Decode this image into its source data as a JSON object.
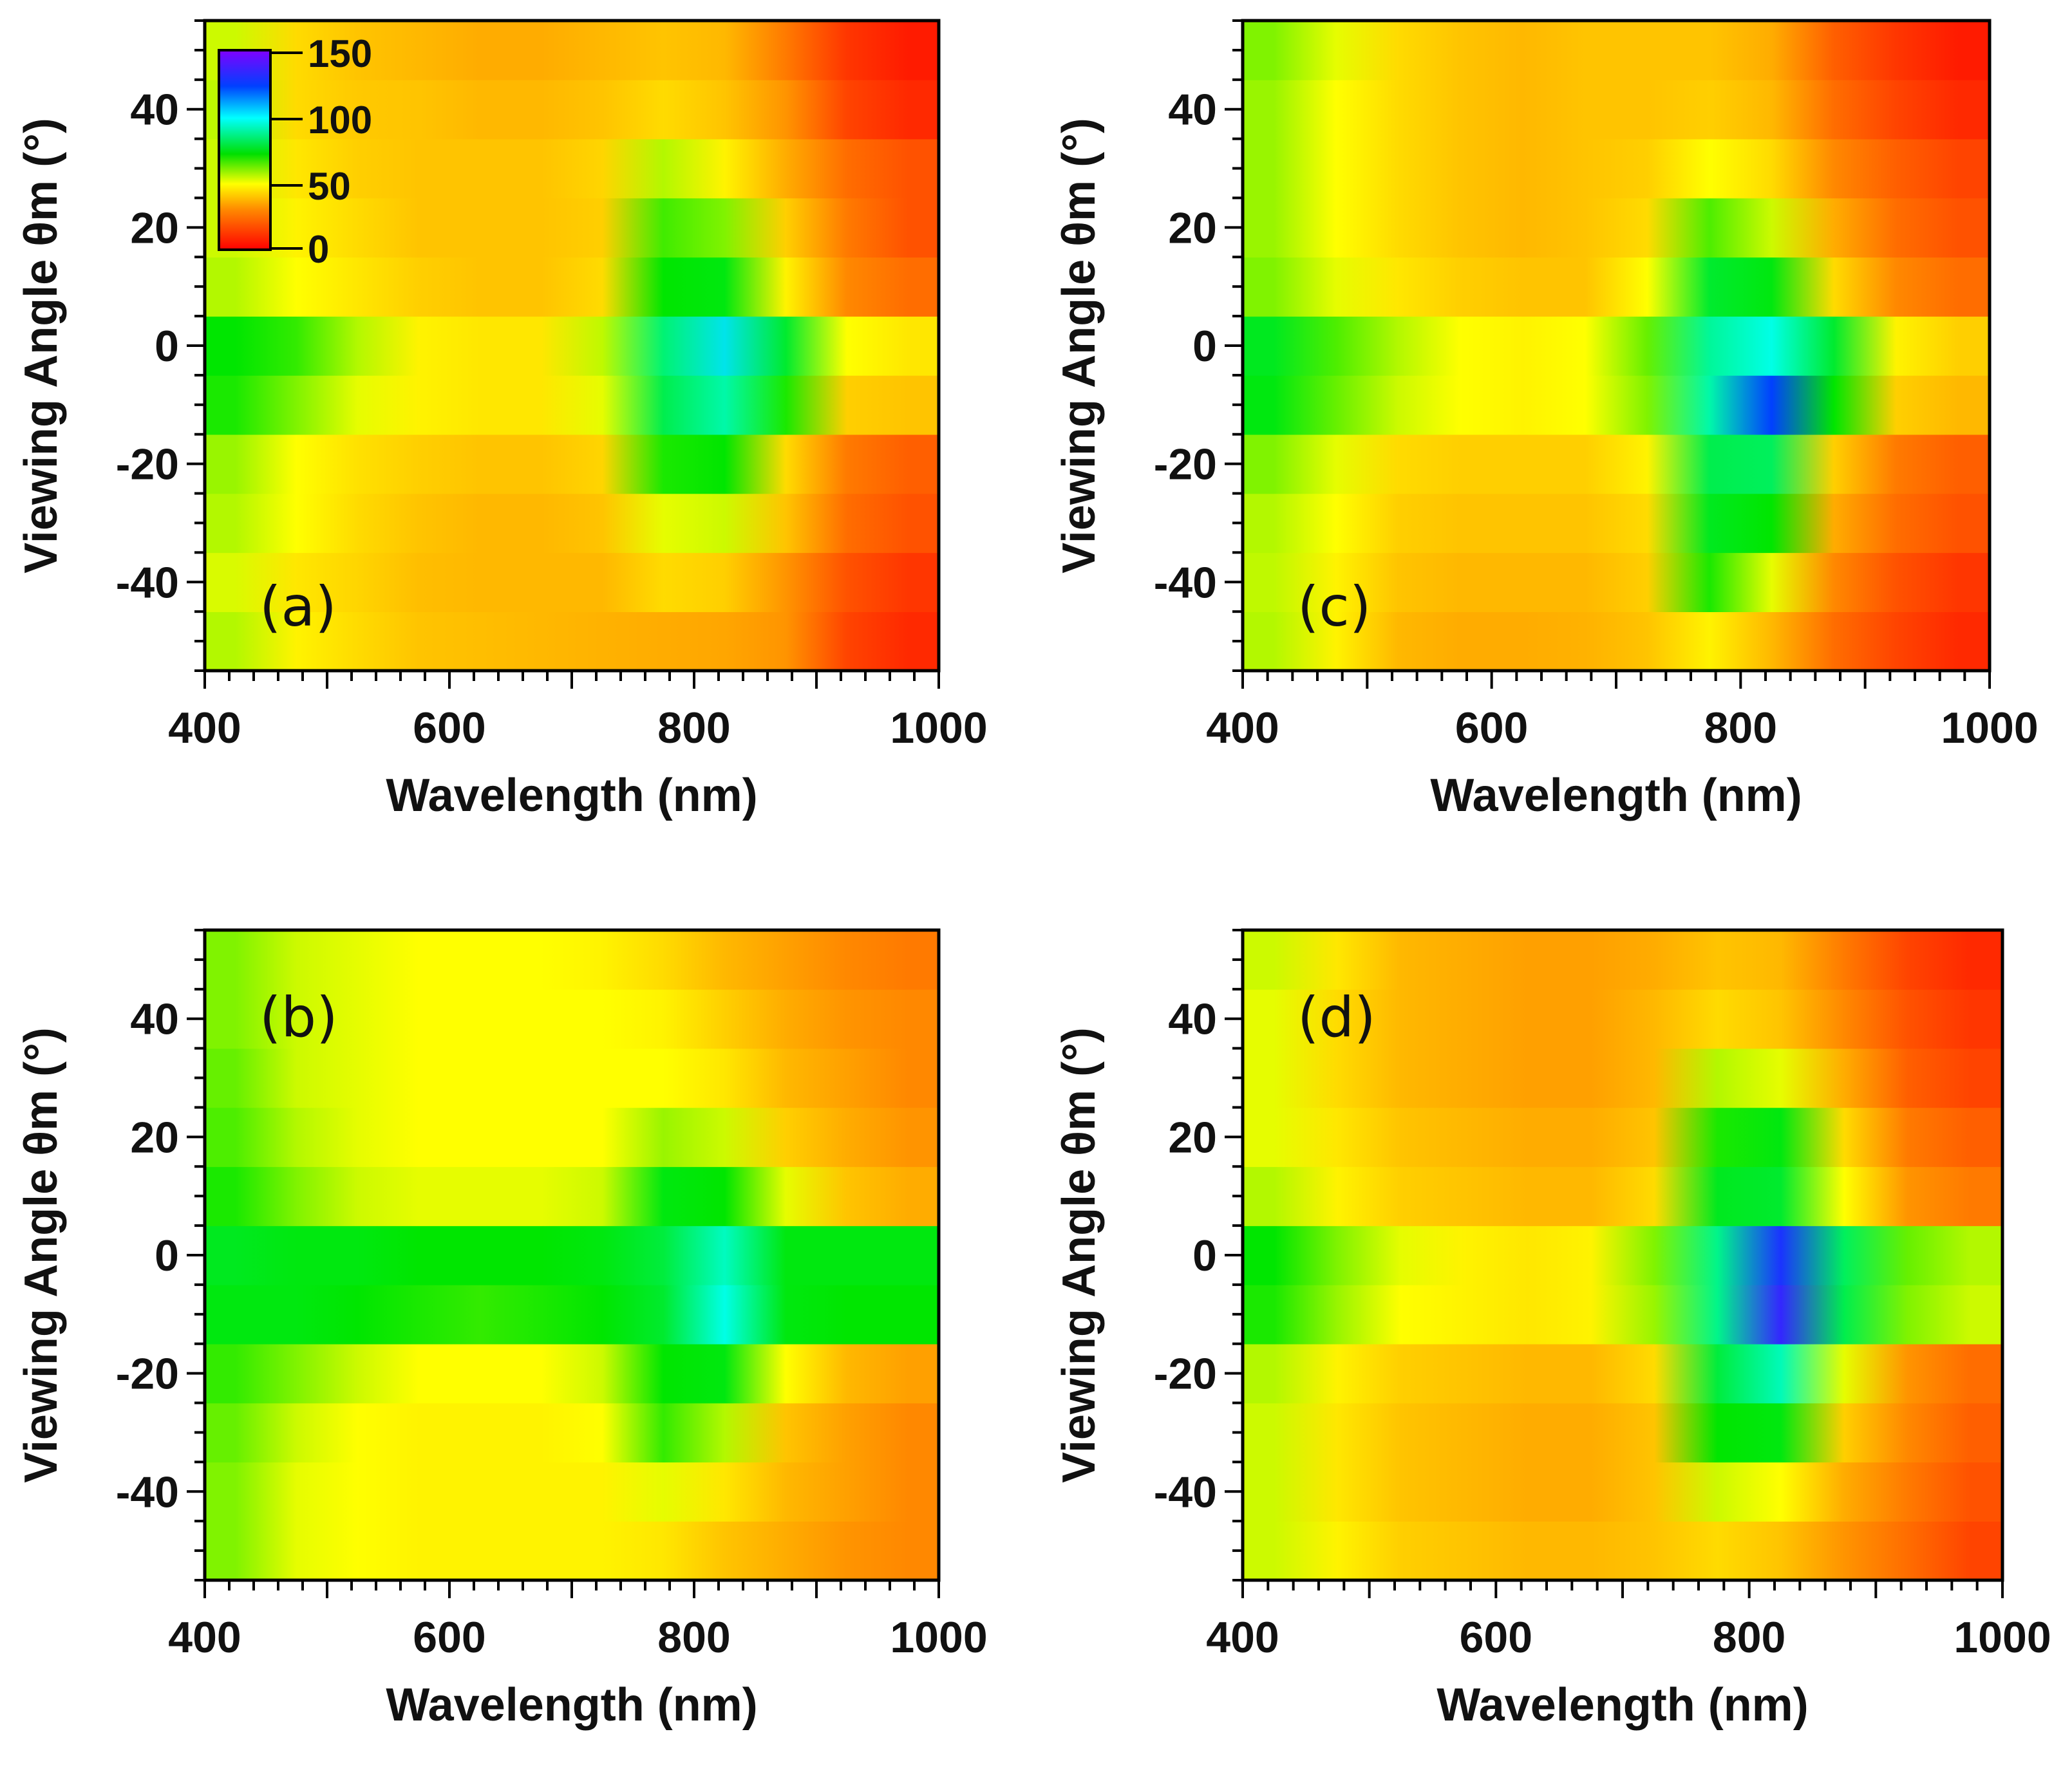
{
  "chart_data": [
    {
      "type": "heatmap",
      "panel": "(a)",
      "xlabel": "Wavelength (nm)",
      "ylabel": "Viewing Angle θm (°)",
      "xlim": [
        400,
        1000
      ],
      "ylim": [
        -55,
        55
      ],
      "x_ticks": [
        400,
        600,
        800,
        1000
      ],
      "y_ticks": [
        -40,
        -20,
        0,
        20,
        40
      ],
      "x_centers": [
        425,
        475,
        525,
        575,
        625,
        675,
        725,
        775,
        825,
        875,
        925,
        975
      ],
      "y_rows": [
        -50,
        -40,
        -30,
        -20,
        -10,
        0,
        10,
        20,
        30,
        40,
        50
      ],
      "values": [
        [
          46,
          38,
          34,
          30,
          29,
          28,
          27,
          26,
          25,
          22,
          10,
          6
        ],
        [
          43,
          36,
          33,
          29,
          28,
          28,
          28,
          34,
          32,
          22,
          12,
          8
        ],
        [
          46,
          40,
          34,
          30,
          28,
          28,
          30,
          42,
          44,
          30,
          16,
          12
        ],
        [
          48,
          40,
          35,
          32,
          30,
          30,
          33,
          58,
          60,
          34,
          18,
          14
        ],
        [
          58,
          50,
          42,
          38,
          36,
          36,
          42,
          70,
          82,
          58,
          32,
          30
        ],
        [
          60,
          56,
          46,
          38,
          36,
          36,
          45,
          75,
          95,
          66,
          40,
          36
        ],
        [
          46,
          40,
          36,
          32,
          30,
          30,
          34,
          60,
          62,
          38,
          20,
          16
        ],
        [
          44,
          38,
          34,
          30,
          30,
          30,
          32,
          55,
          50,
          32,
          18,
          12
        ],
        [
          44,
          36,
          32,
          30,
          30,
          30,
          33,
          46,
          38,
          26,
          16,
          12
        ],
        [
          45,
          34,
          31,
          30,
          28,
          28,
          30,
          34,
          30,
          22,
          10,
          6
        ],
        [
          44,
          34,
          30,
          28,
          26,
          26,
          28,
          30,
          28,
          18,
          8,
          4
        ]
      ]
    },
    {
      "type": "heatmap",
      "panel": "(b)",
      "xlabel": "Wavelength (nm)",
      "ylabel": "Viewing Angle θm (°)",
      "xlim": [
        400,
        1000
      ],
      "ylim": [
        -55,
        55
      ],
      "x_ticks": [
        400,
        600,
        800,
        1000
      ],
      "y_ticks": [
        -40,
        -20,
        0,
        20,
        40
      ],
      "x_centers": [
        425,
        475,
        525,
        575,
        625,
        675,
        725,
        775,
        825,
        875,
        925,
        975
      ],
      "y_rows": [
        -50,
        -40,
        -30,
        -20,
        -10,
        0,
        10,
        20,
        30,
        40,
        50
      ],
      "values": [
        [
          50,
          42,
          40,
          38,
          38,
          38,
          38,
          36,
          30,
          26,
          22,
          20
        ],
        [
          50,
          42,
          40,
          38,
          38,
          38,
          38,
          42,
          36,
          28,
          24,
          20
        ],
        [
          52,
          44,
          40,
          38,
          38,
          38,
          40,
          56,
          46,
          30,
          24,
          20
        ],
        [
          56,
          50,
          44,
          40,
          40,
          40,
          44,
          60,
          62,
          40,
          28,
          24
        ],
        [
          62,
          62,
          60,
          58,
          56,
          58,
          60,
          66,
          90,
          62,
          60,
          60
        ],
        [
          64,
          62,
          62,
          60,
          60,
          60,
          62,
          68,
          85,
          62,
          62,
          62
        ],
        [
          58,
          50,
          44,
          42,
          42,
          42,
          44,
          62,
          60,
          42,
          30,
          26
        ],
        [
          54,
          46,
          42,
          40,
          40,
          40,
          40,
          48,
          44,
          32,
          26,
          22
        ],
        [
          52,
          44,
          42,
          40,
          40,
          40,
          40,
          40,
          36,
          28,
          24,
          20
        ],
        [
          50,
          44,
          42,
          40,
          40,
          40,
          40,
          38,
          32,
          26,
          22,
          20
        ],
        [
          50,
          44,
          42,
          40,
          40,
          40,
          38,
          34,
          28,
          24,
          20,
          18
        ]
      ]
    },
    {
      "type": "heatmap",
      "panel": "(c)",
      "xlabel": "Wavelength (nm)",
      "ylabel": "Viewing Angle θm (°)",
      "xlim": [
        400,
        1000
      ],
      "ylim": [
        -55,
        55
      ],
      "x_ticks": [
        400,
        600,
        800,
        1000
      ],
      "y_ticks": [
        -40,
        -20,
        0,
        20,
        40
      ],
      "x_centers": [
        425,
        475,
        525,
        575,
        625,
        675,
        725,
        775,
        825,
        875,
        925,
        975
      ],
      "y_rows": [
        -50,
        -40,
        -30,
        -20,
        -10,
        0,
        10,
        20,
        30,
        40,
        50
      ],
      "values": [
        [
          46,
          38,
          28,
          26,
          26,
          27,
          30,
          38,
          28,
          16,
          10,
          6
        ],
        [
          45,
          38,
          30,
          28,
          28,
          28,
          32,
          58,
          42,
          20,
          12,
          8
        ],
        [
          46,
          40,
          32,
          30,
          30,
          30,
          34,
          64,
          60,
          26,
          16,
          12
        ],
        [
          50,
          42,
          34,
          32,
          32,
          32,
          38,
          70,
          72,
          32,
          18,
          14
        ],
        [
          62,
          52,
          44,
          40,
          38,
          40,
          50,
          82,
          125,
          60,
          32,
          28
        ],
        [
          64,
          54,
          46,
          40,
          38,
          40,
          52,
          80,
          90,
          66,
          38,
          32
        ],
        [
          50,
          42,
          36,
          32,
          30,
          30,
          40,
          66,
          62,
          34,
          20,
          16
        ],
        [
          48,
          40,
          34,
          30,
          28,
          30,
          34,
          54,
          44,
          26,
          16,
          12
        ],
        [
          48,
          40,
          34,
          30,
          28,
          30,
          32,
          40,
          34,
          20,
          14,
          10
        ],
        [
          48,
          40,
          34,
          30,
          28,
          30,
          30,
          32,
          28,
          16,
          10,
          6
        ],
        [
          50,
          42,
          34,
          30,
          28,
          30,
          30,
          30,
          26,
          14,
          8,
          4
        ]
      ]
    },
    {
      "type": "heatmap",
      "panel": "(d)",
      "xlabel": "Wavelength (nm)",
      "ylabel": "Viewing Angle θm (°)",
      "xlim": [
        400,
        1000
      ],
      "ylim": [
        -55,
        55
      ],
      "x_ticks": [
        400,
        600,
        800,
        1000
      ],
      "y_ticks": [
        -40,
        -20,
        0,
        20,
        40
      ],
      "x_centers": [
        425,
        475,
        525,
        575,
        625,
        675,
        725,
        775,
        825,
        875,
        925,
        975
      ],
      "y_rows": [
        -50,
        -40,
        -30,
        -20,
        -10,
        0,
        10,
        20,
        30,
        40,
        50
      ],
      "values": [
        [
          44,
          38,
          32,
          30,
          28,
          28,
          30,
          34,
          30,
          22,
          16,
          10
        ],
        [
          44,
          36,
          30,
          28,
          26,
          26,
          30,
          44,
          40,
          26,
          18,
          12
        ],
        [
          44,
          36,
          30,
          28,
          26,
          26,
          30,
          60,
          62,
          32,
          20,
          14
        ],
        [
          46,
          38,
          32,
          30,
          28,
          28,
          34,
          68,
          84,
          42,
          22,
          16
        ],
        [
          58,
          48,
          40,
          38,
          36,
          38,
          48,
          78,
          135,
          70,
          50,
          44
        ],
        [
          60,
          50,
          42,
          38,
          36,
          38,
          50,
          78,
          130,
          72,
          52,
          46
        ],
        [
          46,
          38,
          32,
          30,
          28,
          28,
          34,
          64,
          66,
          40,
          22,
          18
        ],
        [
          42,
          36,
          30,
          28,
          26,
          26,
          30,
          58,
          62,
          34,
          18,
          14
        ],
        [
          42,
          34,
          28,
          26,
          24,
          24,
          28,
          46,
          42,
          26,
          14,
          10
        ],
        [
          42,
          34,
          28,
          26,
          24,
          24,
          28,
          34,
          30,
          20,
          12,
          8
        ],
        [
          44,
          36,
          28,
          26,
          24,
          24,
          26,
          30,
          28,
          18,
          10,
          6
        ]
      ]
    }
  ],
  "colorbar": {
    "range": [
      0,
      150
    ],
    "tick_labels": [
      "150",
      "100",
      "50",
      "0"
    ],
    "stops": [
      "#ff0000",
      "#ff8800",
      "#ffff00",
      "#00e000",
      "#00ffff",
      "#0040ff",
      "#8000ff"
    ]
  }
}
